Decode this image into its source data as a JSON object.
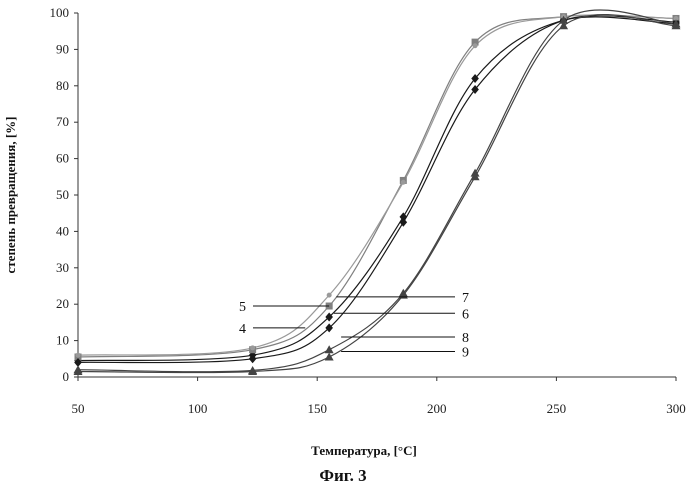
{
  "chart_data": {
    "type": "scatter",
    "xlabel": "Температура, [°C]",
    "ylabel": "степень превращения, [%]",
    "caption": "Фиг. 3",
    "xlim": [
      50,
      300
    ],
    "ylim": [
      0,
      100
    ],
    "x_ticks": [
      50,
      100,
      150,
      200,
      250,
      300
    ],
    "y_ticks": [
      0,
      10,
      20,
      30,
      40,
      50,
      60,
      70,
      80,
      90,
      100
    ],
    "grid": false,
    "series": [
      {
        "name": "4",
        "marker": "diamond",
        "color": "#1a1a1a",
        "x": [
          50,
          123,
          155,
          186,
          216,
          253,
          300
        ],
        "y": [
          4.5,
          6,
          16.5,
          44,
          82,
          98,
          97
        ]
      },
      {
        "name": "5",
        "marker": "square",
        "color": "#808080",
        "x": [
          50,
          123,
          155,
          186,
          216,
          253,
          300
        ],
        "y": [
          5.5,
          7.5,
          19.5,
          54,
          92,
          99,
          98.5
        ]
      },
      {
        "name": "6",
        "marker": "diamond",
        "color": "#1a1a1a",
        "x": [
          50,
          123,
          155,
          186,
          216,
          253,
          300
        ],
        "y": [
          4,
          5,
          13.5,
          42.5,
          79,
          98,
          97.5
        ]
      },
      {
        "name": "7",
        "marker": "dot",
        "color": "#9a9a9a",
        "x": [
          50,
          123,
          155,
          186,
          216,
          253,
          300
        ],
        "y": [
          6,
          8,
          22.5,
          53.5,
          91,
          99,
          98.5
        ]
      },
      {
        "name": "8",
        "marker": "triangle",
        "color": "#444444",
        "x": [
          50,
          123,
          155,
          186,
          216,
          253,
          300
        ],
        "y": [
          2,
          1.8,
          7.5,
          23,
          56,
          98,
          97
        ]
      },
      {
        "name": "9",
        "marker": "triangle",
        "color": "#444444",
        "x": [
          50,
          123,
          155,
          186,
          216,
          253,
          300
        ],
        "y": [
          1.5,
          1.5,
          5.5,
          22.5,
          55,
          96.5,
          96.5
        ]
      }
    ],
    "annotations": [
      {
        "label": "5",
        "side": "left",
        "x": 155,
        "y": 19.5
      },
      {
        "label": "4",
        "side": "left",
        "x": 145,
        "y": 13.5
      },
      {
        "label": "7",
        "side": "right",
        "x": 158,
        "y": 22
      },
      {
        "label": "6",
        "side": "right",
        "x": 157,
        "y": 17.5
      },
      {
        "label": "8",
        "side": "right",
        "x": 160,
        "y": 11
      },
      {
        "label": "9",
        "side": "right",
        "x": 160,
        "y": 7
      }
    ]
  }
}
